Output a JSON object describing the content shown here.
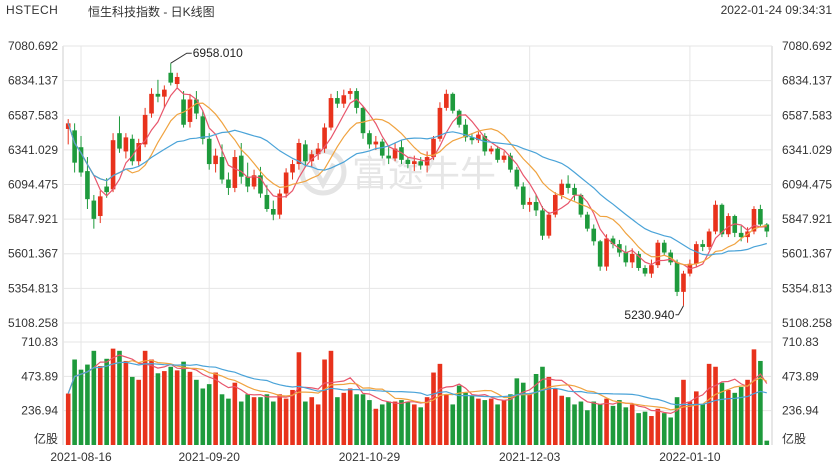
{
  "header": {
    "symbol": "HSTECH",
    "name": "恒生科技指数 - 日K线图",
    "timestamp": "2022-01-24 09:34:31"
  },
  "watermark": "富途牛牛",
  "colors": {
    "up": "#e8321c",
    "down": "#1e9a3c",
    "ma5": "#e8566c",
    "ma10": "#f0a340",
    "ma20": "#4aa3d8",
    "grid": "#e6e6e6"
  },
  "chart_data": {
    "type": "candlestick",
    "price_axis": {
      "ticks": [
        "7080.692",
        "6834.137",
        "6587.583",
        "6341.029",
        "6094.475",
        "5847.921",
        "5601.367",
        "5354.813",
        "5108.258"
      ],
      "ylim": [
        5108.258,
        7080.692
      ]
    },
    "volume_axis": {
      "ticks": [
        "710.83",
        "473.89",
        "236.94"
      ],
      "unit": "亿股",
      "ylim": [
        0,
        710.83
      ]
    },
    "x_ticks": [
      {
        "label": "2021-08-16",
        "index": 2
      },
      {
        "label": "2021-09-20",
        "index": 22
      },
      {
        "label": "2021-10-29",
        "index": 47
      },
      {
        "label": "2021-12-03",
        "index": 72
      },
      {
        "label": "2022-01-10",
        "index": 97
      }
    ],
    "annotations": [
      {
        "text": "6958.010",
        "index": 16,
        "value": 6958.01
      },
      {
        "text": "5230.940",
        "index": 96,
        "value": 5230.94
      }
    ],
    "candles": [
      {
        "o": 6490,
        "h": 6560,
        "l": 6380,
        "c": 6530,
        "v": 355
      },
      {
        "o": 6480,
        "h": 6530,
        "l": 6180,
        "c": 6250,
        "v": 590
      },
      {
        "o": 6360,
        "h": 6440,
        "l": 6150,
        "c": 6180,
        "v": 520
      },
      {
        "o": 6190,
        "h": 6290,
        "l": 5920,
        "c": 5990,
        "v": 555
      },
      {
        "o": 5980,
        "h": 6020,
        "l": 5780,
        "c": 5850,
        "v": 650
      },
      {
        "o": 5870,
        "h": 6050,
        "l": 5820,
        "c": 6010,
        "v": 545
      },
      {
        "o": 6080,
        "h": 6140,
        "l": 6000,
        "c": 6040,
        "v": 595
      },
      {
        "o": 6060,
        "h": 6460,
        "l": 6040,
        "c": 6410,
        "v": 665
      },
      {
        "o": 6460,
        "h": 6580,
        "l": 6320,
        "c": 6350,
        "v": 650
      },
      {
        "o": 6330,
        "h": 6460,
        "l": 6280,
        "c": 6430,
        "v": 580
      },
      {
        "o": 6420,
        "h": 6450,
        "l": 6230,
        "c": 6260,
        "v": 470
      },
      {
        "o": 6260,
        "h": 6420,
        "l": 6230,
        "c": 6390,
        "v": 450
      },
      {
        "o": 6380,
        "h": 6640,
        "l": 6360,
        "c": 6590,
        "v": 650
      },
      {
        "o": 6600,
        "h": 6780,
        "l": 6570,
        "c": 6740,
        "v": 590
      },
      {
        "o": 6740,
        "h": 6840,
        "l": 6680,
        "c": 6720,
        "v": 495
      },
      {
        "o": 6720,
        "h": 6800,
        "l": 6640,
        "c": 6770,
        "v": 510
      },
      {
        "o": 6890,
        "h": 6958,
        "l": 6800,
        "c": 6820,
        "v": 540
      },
      {
        "o": 6810,
        "h": 6890,
        "l": 6780,
        "c": 6860,
        "v": 515
      },
      {
        "o": 6700,
        "h": 6760,
        "l": 6500,
        "c": 6520,
        "v": 575
      },
      {
        "o": 6540,
        "h": 6740,
        "l": 6500,
        "c": 6700,
        "v": 505
      },
      {
        "o": 6700,
        "h": 6760,
        "l": 6560,
        "c": 6600,
        "v": 450
      },
      {
        "o": 6580,
        "h": 6620,
        "l": 6380,
        "c": 6420,
        "v": 390
      },
      {
        "o": 6420,
        "h": 6460,
        "l": 6200,
        "c": 6240,
        "v": 420
      },
      {
        "o": 6240,
        "h": 6350,
        "l": 6180,
        "c": 6300,
        "v": 500
      },
      {
        "o": 6290,
        "h": 6380,
        "l": 6100,
        "c": 6130,
        "v": 350
      },
      {
        "o": 6130,
        "h": 6180,
        "l": 6020,
        "c": 6070,
        "v": 320
      },
      {
        "o": 6070,
        "h": 6340,
        "l": 6040,
        "c": 6290,
        "v": 430
      },
      {
        "o": 6300,
        "h": 6390,
        "l": 6100,
        "c": 6150,
        "v": 300
      },
      {
        "o": 6150,
        "h": 6250,
        "l": 6040,
        "c": 6080,
        "v": 350
      },
      {
        "o": 6080,
        "h": 6200,
        "l": 6060,
        "c": 6160,
        "v": 330
      },
      {
        "o": 6160,
        "h": 6220,
        "l": 6000,
        "c": 6030,
        "v": 330
      },
      {
        "o": 6020,
        "h": 6090,
        "l": 5900,
        "c": 5920,
        "v": 350
      },
      {
        "o": 5920,
        "h": 5980,
        "l": 5840,
        "c": 5880,
        "v": 300
      },
      {
        "o": 5880,
        "h": 6060,
        "l": 5850,
        "c": 6030,
        "v": 350
      },
      {
        "o": 6030,
        "h": 6210,
        "l": 6000,
        "c": 6180,
        "v": 320
      },
      {
        "o": 6180,
        "h": 6270,
        "l": 6130,
        "c": 6240,
        "v": 380
      },
      {
        "o": 6240,
        "h": 6420,
        "l": 6200,
        "c": 6390,
        "v": 640
      },
      {
        "o": 6380,
        "h": 6410,
        "l": 6220,
        "c": 6260,
        "v": 300
      },
      {
        "o": 6260,
        "h": 6340,
        "l": 6220,
        "c": 6310,
        "v": 330
      },
      {
        "o": 6310,
        "h": 6390,
        "l": 6270,
        "c": 6350,
        "v": 280
      },
      {
        "o": 6350,
        "h": 6530,
        "l": 6320,
        "c": 6500,
        "v": 590
      },
      {
        "o": 6500,
        "h": 6740,
        "l": 6480,
        "c": 6710,
        "v": 650
      },
      {
        "o": 6710,
        "h": 6760,
        "l": 6640,
        "c": 6670,
        "v": 330
      },
      {
        "o": 6670,
        "h": 6770,
        "l": 6640,
        "c": 6730,
        "v": 360
      },
      {
        "o": 6740,
        "h": 6780,
        "l": 6700,
        "c": 6760,
        "v": 390
      },
      {
        "o": 6760,
        "h": 6780,
        "l": 6600,
        "c": 6640,
        "v": 350
      },
      {
        "o": 6640,
        "h": 6650,
        "l": 6420,
        "c": 6460,
        "v": 350
      },
      {
        "o": 6460,
        "h": 6480,
        "l": 6350,
        "c": 6380,
        "v": 310
      },
      {
        "o": 6380,
        "h": 6440,
        "l": 6340,
        "c": 6400,
        "v": 250
      },
      {
        "o": 6400,
        "h": 6420,
        "l": 6280,
        "c": 6300,
        "v": 280
      },
      {
        "o": 6300,
        "h": 6360,
        "l": 6240,
        "c": 6280,
        "v": 300
      },
      {
        "o": 6280,
        "h": 6390,
        "l": 6260,
        "c": 6350,
        "v": 300
      },
      {
        "o": 6360,
        "h": 6410,
        "l": 6240,
        "c": 6270,
        "v": 310
      },
      {
        "o": 6270,
        "h": 6290,
        "l": 6210,
        "c": 6240,
        "v": 300
      },
      {
        "o": 6240,
        "h": 6300,
        "l": 6190,
        "c": 6260,
        "v": 280
      },
      {
        "o": 6260,
        "h": 6290,
        "l": 6200,
        "c": 6230,
        "v": 260
      },
      {
        "o": 6230,
        "h": 6330,
        "l": 6180,
        "c": 6290,
        "v": 330
      },
      {
        "o": 6290,
        "h": 6440,
        "l": 6270,
        "c": 6420,
        "v": 500
      },
      {
        "o": 6420,
        "h": 6680,
        "l": 6400,
        "c": 6640,
        "v": 560
      },
      {
        "o": 6640,
        "h": 6770,
        "l": 6620,
        "c": 6740,
        "v": 350
      },
      {
        "o": 6740,
        "h": 6750,
        "l": 6600,
        "c": 6620,
        "v": 280
      },
      {
        "o": 6620,
        "h": 6630,
        "l": 6500,
        "c": 6520,
        "v": 410
      },
      {
        "o": 6520,
        "h": 6560,
        "l": 6400,
        "c": 6430,
        "v": 360
      },
      {
        "o": 6430,
        "h": 6460,
        "l": 6380,
        "c": 6410,
        "v": 340
      },
      {
        "o": 6410,
        "h": 6470,
        "l": 6390,
        "c": 6450,
        "v": 320
      },
      {
        "o": 6440,
        "h": 6460,
        "l": 6300,
        "c": 6330,
        "v": 310
      },
      {
        "o": 6330,
        "h": 6370,
        "l": 6310,
        "c": 6350,
        "v": 320
      },
      {
        "o": 6350,
        "h": 6370,
        "l": 6250,
        "c": 6270,
        "v": 280
      },
      {
        "o": 6270,
        "h": 6330,
        "l": 6250,
        "c": 6300,
        "v": 310
      },
      {
        "o": 6300,
        "h": 6320,
        "l": 6180,
        "c": 6200,
        "v": 350
      },
      {
        "o": 6200,
        "h": 6220,
        "l": 6060,
        "c": 6080,
        "v": 460
      },
      {
        "o": 6080,
        "h": 6110,
        "l": 5920,
        "c": 5950,
        "v": 430
      },
      {
        "o": 5950,
        "h": 6000,
        "l": 5900,
        "c": 5970,
        "v": 350
      },
      {
        "o": 5970,
        "h": 6020,
        "l": 5870,
        "c": 5910,
        "v": 490
      },
      {
        "o": 5910,
        "h": 5940,
        "l": 5700,
        "c": 5730,
        "v": 540
      },
      {
        "o": 5730,
        "h": 5900,
        "l": 5710,
        "c": 5880,
        "v": 470
      },
      {
        "o": 5880,
        "h": 6040,
        "l": 5860,
        "c": 6020,
        "v": 390
      },
      {
        "o": 6020,
        "h": 6130,
        "l": 5990,
        "c": 6100,
        "v": 340
      },
      {
        "o": 6100,
        "h": 6160,
        "l": 6030,
        "c": 6070,
        "v": 330
      },
      {
        "o": 6070,
        "h": 6100,
        "l": 5980,
        "c": 6020,
        "v": 280
      },
      {
        "o": 6020,
        "h": 6030,
        "l": 5860,
        "c": 5880,
        "v": 300
      },
      {
        "o": 5880,
        "h": 5900,
        "l": 5760,
        "c": 5780,
        "v": 240
      },
      {
        "o": 5780,
        "h": 5810,
        "l": 5660,
        "c": 5690,
        "v": 300
      },
      {
        "o": 5690,
        "h": 5700,
        "l": 5480,
        "c": 5510,
        "v": 280
      },
      {
        "o": 5510,
        "h": 5740,
        "l": 5480,
        "c": 5710,
        "v": 320
      },
      {
        "o": 5710,
        "h": 5730,
        "l": 5640,
        "c": 5670,
        "v": 270
      },
      {
        "o": 5670,
        "h": 5700,
        "l": 5580,
        "c": 5610,
        "v": 310
      },
      {
        "o": 5610,
        "h": 5660,
        "l": 5510,
        "c": 5540,
        "v": 260
      },
      {
        "o": 5540,
        "h": 5640,
        "l": 5500,
        "c": 5600,
        "v": 280
      },
      {
        "o": 5600,
        "h": 5620,
        "l": 5480,
        "c": 5500,
        "v": 220
      },
      {
        "o": 5500,
        "h": 5520,
        "l": 5440,
        "c": 5460,
        "v": 230
      },
      {
        "o": 5460,
        "h": 5560,
        "l": 5430,
        "c": 5520,
        "v": 200
      },
      {
        "o": 5520,
        "h": 5700,
        "l": 5500,
        "c": 5680,
        "v": 250
      },
      {
        "o": 5680,
        "h": 5700,
        "l": 5590,
        "c": 5610,
        "v": 220
      },
      {
        "o": 5610,
        "h": 5630,
        "l": 5520,
        "c": 5540,
        "v": 190
      },
      {
        "o": 5540,
        "h": 5560,
        "l": 5300,
        "c": 5330,
        "v": 330
      },
      {
        "o": 5330,
        "h": 5480,
        "l": 5231,
        "c": 5460,
        "v": 450
      },
      {
        "o": 5460,
        "h": 5560,
        "l": 5440,
        "c": 5530,
        "v": 300
      },
      {
        "o": 5530,
        "h": 5690,
        "l": 5510,
        "c": 5670,
        "v": 370
      },
      {
        "o": 5670,
        "h": 5700,
        "l": 5620,
        "c": 5650,
        "v": 280
      },
      {
        "o": 5650,
        "h": 5780,
        "l": 5630,
        "c": 5760,
        "v": 560
      },
      {
        "o": 5760,
        "h": 5980,
        "l": 5740,
        "c": 5950,
        "v": 540
      },
      {
        "o": 5950,
        "h": 5960,
        "l": 5720,
        "c": 5740,
        "v": 430
      },
      {
        "o": 5740,
        "h": 5890,
        "l": 5720,
        "c": 5870,
        "v": 380
      },
      {
        "o": 5870,
        "h": 5880,
        "l": 5720,
        "c": 5750,
        "v": 360
      },
      {
        "o": 5750,
        "h": 5800,
        "l": 5690,
        "c": 5720,
        "v": 400
      },
      {
        "o": 5720,
        "h": 5790,
        "l": 5680,
        "c": 5760,
        "v": 450
      },
      {
        "o": 5760,
        "h": 5940,
        "l": 5740,
        "c": 5920,
        "v": 660
      },
      {
        "o": 5920,
        "h": 5950,
        "l": 5790,
        "c": 5810,
        "v": 580
      },
      {
        "o": 5810,
        "h": 5820,
        "l": 5720,
        "c": 5760,
        "v": 30
      }
    ]
  }
}
